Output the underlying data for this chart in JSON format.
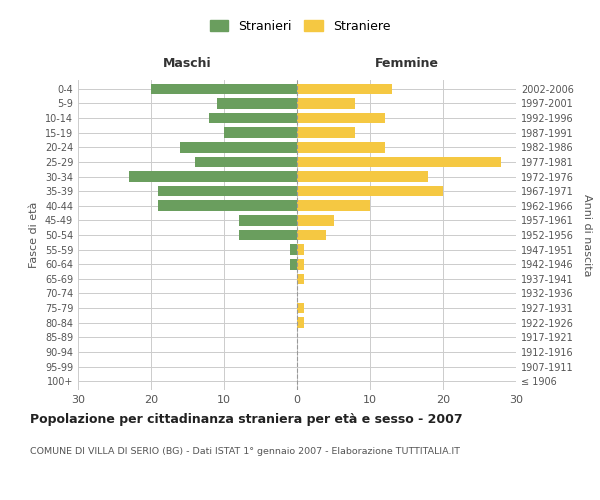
{
  "age_groups": [
    "100+",
    "95-99",
    "90-94",
    "85-89",
    "80-84",
    "75-79",
    "70-74",
    "65-69",
    "60-64",
    "55-59",
    "50-54",
    "45-49",
    "40-44",
    "35-39",
    "30-34",
    "25-29",
    "20-24",
    "15-19",
    "10-14",
    "5-9",
    "0-4"
  ],
  "birth_years": [
    "≤ 1906",
    "1907-1911",
    "1912-1916",
    "1917-1921",
    "1922-1926",
    "1927-1931",
    "1932-1936",
    "1937-1941",
    "1942-1946",
    "1947-1951",
    "1952-1956",
    "1957-1961",
    "1962-1966",
    "1967-1971",
    "1972-1976",
    "1977-1981",
    "1982-1986",
    "1987-1991",
    "1992-1996",
    "1997-2001",
    "2002-2006"
  ],
  "maschi": [
    0,
    0,
    0,
    0,
    0,
    0,
    0,
    0,
    1,
    1,
    8,
    8,
    19,
    19,
    23,
    14,
    16,
    10,
    12,
    11,
    20
  ],
  "femmine": [
    0,
    0,
    0,
    0,
    1,
    1,
    0,
    1,
    1,
    1,
    4,
    5,
    10,
    20,
    18,
    28,
    12,
    8,
    12,
    8,
    13
  ],
  "maschi_color": "#6a9e5e",
  "femmine_color": "#f5c842",
  "background_color": "#ffffff",
  "grid_color": "#cccccc",
  "title": "Popolazione per cittadinanza straniera per età e sesso - 2007",
  "subtitle": "COMUNE DI VILLA DI SERIO (BG) - Dati ISTAT 1° gennaio 2007 - Elaborazione TUTTITALIA.IT",
  "xlabel_left": "Maschi",
  "xlabel_right": "Femmine",
  "ylabel_left": "Fasce di età",
  "ylabel_right": "Anni di nascita",
  "legend_maschi": "Stranieri",
  "legend_femmine": "Straniere",
  "xlim": 30
}
